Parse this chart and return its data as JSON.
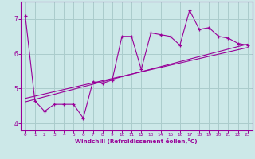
{
  "xlabel": "Windchill (Refroidissement éolien,°C)",
  "background_color": "#cce8e8",
  "grid_color": "#aacccc",
  "line_color": "#990099",
  "xlim": [
    -0.5,
    23.5
  ],
  "ylim": [
    3.8,
    7.5
  ],
  "yticks": [
    4,
    5,
    6,
    7
  ],
  "xticks": [
    0,
    1,
    2,
    3,
    4,
    5,
    6,
    7,
    8,
    9,
    10,
    11,
    12,
    13,
    14,
    15,
    16,
    17,
    18,
    19,
    20,
    21,
    22,
    23
  ],
  "series1": {
    "x": [
      0,
      1,
      2,
      3,
      4,
      5,
      6,
      7,
      8,
      9,
      10,
      11,
      12,
      13,
      14,
      15,
      16,
      17,
      18,
      19,
      20,
      21,
      22,
      23
    ],
    "y": [
      7.1,
      4.65,
      4.35,
      4.55,
      4.55,
      4.55,
      4.15,
      5.2,
      5.15,
      5.25,
      6.5,
      6.5,
      5.55,
      6.6,
      6.55,
      6.5,
      6.25,
      7.25,
      6.7,
      6.75,
      6.5,
      6.45,
      6.3,
      6.25
    ]
  },
  "series2_linear": {
    "x": [
      0,
      23
    ],
    "y": [
      4.62,
      6.28
    ]
  },
  "series3_linear": {
    "x": [
      0,
      23
    ],
    "y": [
      4.72,
      6.18
    ]
  }
}
